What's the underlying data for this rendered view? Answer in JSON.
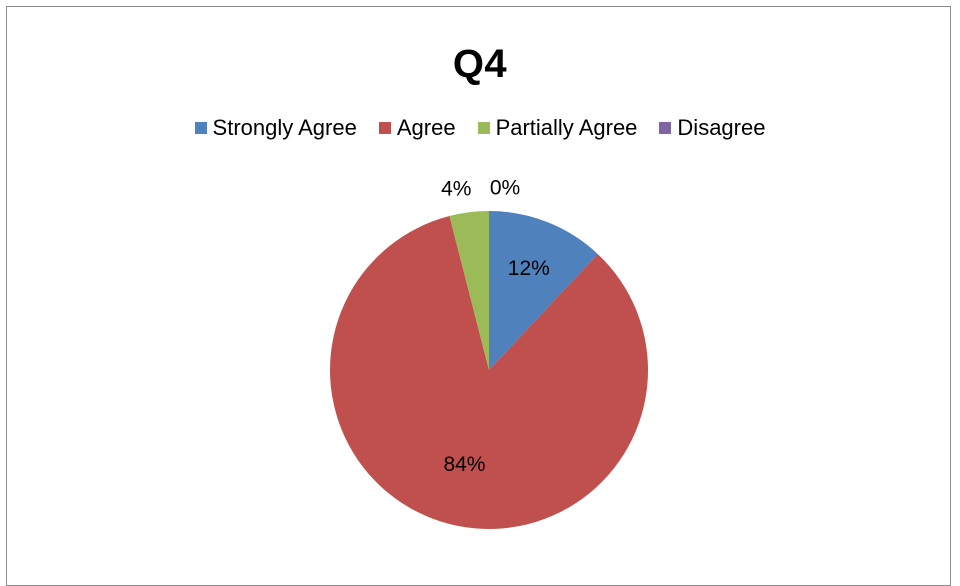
{
  "chart_data": {
    "type": "pie",
    "title": "Q4",
    "legend_position": "top",
    "categories": [
      "Strongly Agree",
      "Agree",
      "Partially Agree",
      "Disagree"
    ],
    "values": [
      12,
      84,
      4,
      0
    ],
    "labels": [
      "12%",
      "84%",
      "4%",
      "0%"
    ],
    "colors": [
      "#4f81bd",
      "#c0504d",
      "#9bbb59",
      "#8064a2"
    ]
  }
}
